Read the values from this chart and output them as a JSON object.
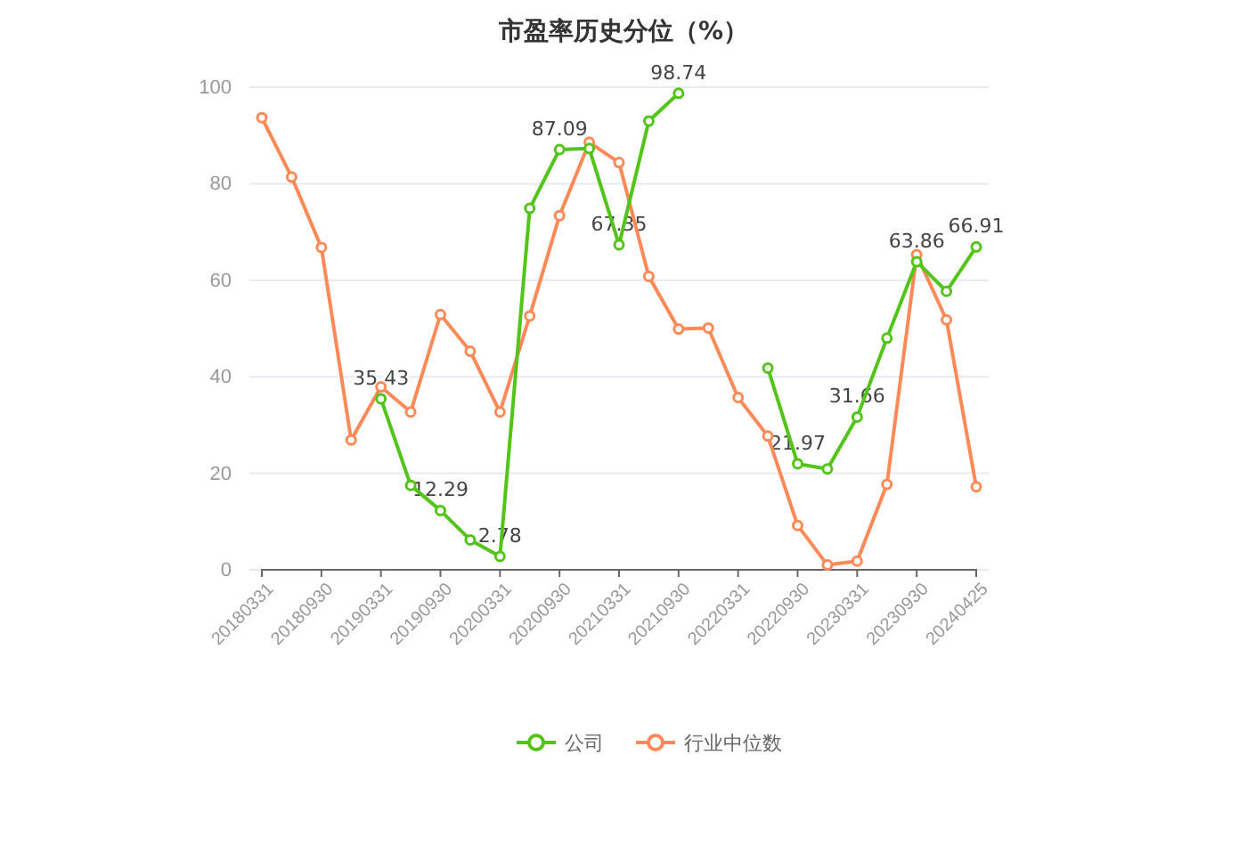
{
  "chart_data": {
    "type": "line",
    "title": "市盈率历史分位（%）",
    "categories": [
      "20180331",
      null,
      "20180930",
      null,
      "20190331",
      null,
      "20190930",
      null,
      "20200331",
      null,
      "20200930",
      null,
      "20210331",
      null,
      "20210930",
      null,
      "20220331",
      null,
      "20220930",
      null,
      "20230331",
      null,
      "20230930",
      null,
      "20240425"
    ],
    "series": [
      {
        "name": "公司",
        "color": "#52c41a",
        "values": [
          null,
          null,
          null,
          null,
          35.43,
          17.5,
          12.29,
          6.2,
          2.78,
          74.9,
          87.09,
          87.3,
          67.35,
          93.0,
          98.74,
          null,
          null,
          41.8,
          21.97,
          20.9,
          31.66,
          48.0,
          63.86,
          57.7,
          66.91
        ],
        "value_labels": [
          null,
          null,
          null,
          null,
          "35.43",
          null,
          "12.29",
          null,
          "2.78",
          null,
          "87.09",
          null,
          "67.35",
          null,
          "98.74",
          null,
          null,
          null,
          "21.97",
          null,
          "31.66",
          null,
          "63.86",
          null,
          "66.91"
        ]
      },
      {
        "name": "行业中位数",
        "color": "#ff8a57",
        "values": [
          93.7,
          81.4,
          66.8,
          26.9,
          37.9,
          32.7,
          52.9,
          45.3,
          32.7,
          52.6,
          73.4,
          88.6,
          84.4,
          60.8,
          49.9,
          50.1,
          35.7,
          27.7,
          9.2,
          1.0,
          1.8,
          17.7,
          65.3,
          51.8,
          17.2
        ]
      }
    ],
    "ylim": [
      0,
      100
    ],
    "yticks": [
      0,
      20,
      40,
      60,
      80,
      100
    ],
    "grid": "y",
    "legend": "bottom",
    "marker": "circle",
    "line_style": "solid"
  }
}
